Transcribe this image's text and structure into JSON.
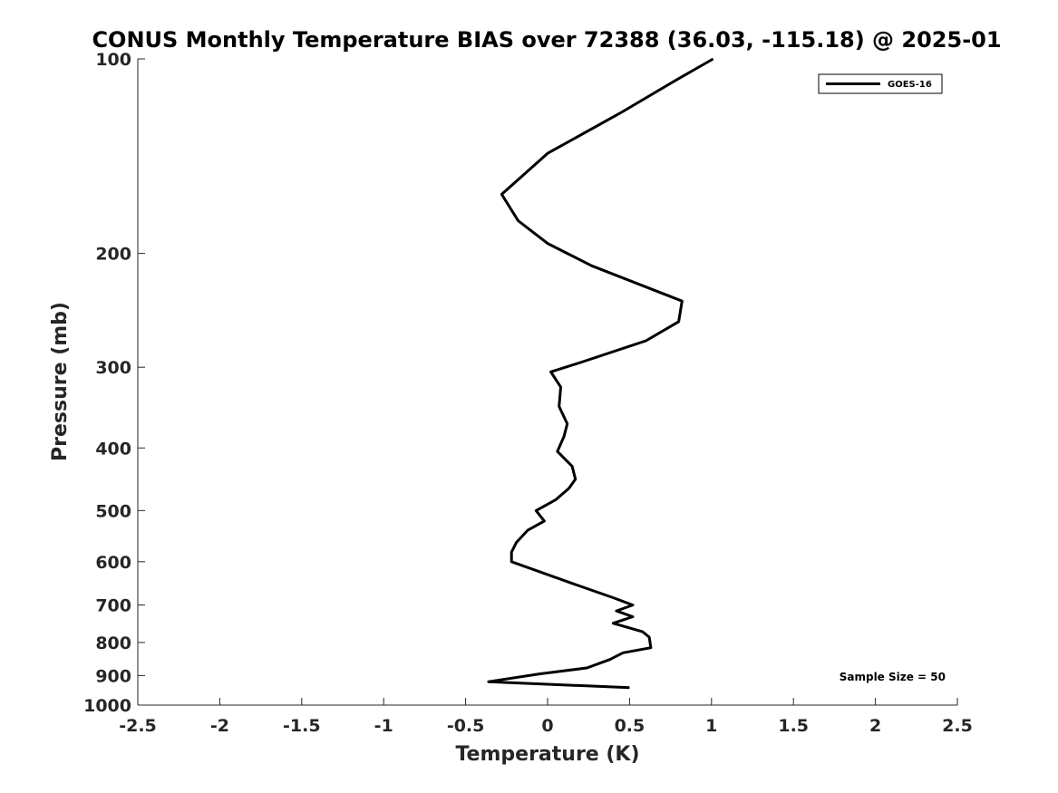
{
  "chart_data": {
    "type": "line",
    "title": "CONUS Monthly Temperature BIAS over 72388 (36.03, -115.18) @ 2025-01",
    "xlabel": "Temperature (K)",
    "ylabel": "Pressure (mb)",
    "xlim": [
      -2.5,
      2.5
    ],
    "ylim": [
      1000,
      100
    ],
    "y_scale": "log",
    "y_reversed": true,
    "x_ticks": [
      "-2.5",
      "-2",
      "-1.5",
      "-1",
      "-0.5",
      "0",
      "0.5",
      "1",
      "1.5",
      "2",
      "2.5"
    ],
    "y_ticks": [
      "100",
      "200",
      "300",
      "400",
      "500",
      "600",
      "700",
      "800",
      "900",
      "1000"
    ],
    "grid": false,
    "legend_position": "top-right",
    "annotation": "Sample Size = 50",
    "series": [
      {
        "name": "GOES-16",
        "color": "#000000",
        "points": [
          {
            "x": 1.01,
            "y": 100
          },
          {
            "x": 0.78,
            "y": 108
          },
          {
            "x": 0.45,
            "y": 121
          },
          {
            "x": 0.0,
            "y": 140
          },
          {
            "x": -0.28,
            "y": 162
          },
          {
            "x": -0.18,
            "y": 178
          },
          {
            "x": 0.0,
            "y": 193
          },
          {
            "x": 0.27,
            "y": 209
          },
          {
            "x": 0.82,
            "y": 237
          },
          {
            "x": 0.8,
            "y": 255
          },
          {
            "x": 0.6,
            "y": 273
          },
          {
            "x": 0.2,
            "y": 295
          },
          {
            "x": 0.02,
            "y": 305
          },
          {
            "x": 0.08,
            "y": 322
          },
          {
            "x": 0.07,
            "y": 345
          },
          {
            "x": 0.12,
            "y": 367
          },
          {
            "x": 0.1,
            "y": 384
          },
          {
            "x": 0.06,
            "y": 405
          },
          {
            "x": 0.15,
            "y": 427
          },
          {
            "x": 0.17,
            "y": 447
          },
          {
            "x": 0.13,
            "y": 462
          },
          {
            "x": 0.05,
            "y": 481
          },
          {
            "x": -0.07,
            "y": 500
          },
          {
            "x": -0.02,
            "y": 519
          },
          {
            "x": -0.12,
            "y": 536
          },
          {
            "x": -0.19,
            "y": 560
          },
          {
            "x": -0.22,
            "y": 580
          },
          {
            "x": -0.22,
            "y": 600
          },
          {
            "x": 0.15,
            "y": 648
          },
          {
            "x": 0.4,
            "y": 682
          },
          {
            "x": 0.52,
            "y": 700
          },
          {
            "x": 0.42,
            "y": 715
          },
          {
            "x": 0.52,
            "y": 730
          },
          {
            "x": 0.4,
            "y": 747
          },
          {
            "x": 0.58,
            "y": 770
          },
          {
            "x": 0.62,
            "y": 785
          },
          {
            "x": 0.63,
            "y": 815
          },
          {
            "x": 0.46,
            "y": 830
          },
          {
            "x": 0.38,
            "y": 850
          },
          {
            "x": 0.24,
            "y": 876
          },
          {
            "x": -0.05,
            "y": 895
          },
          {
            "x": -0.36,
            "y": 920
          },
          {
            "x": 0.5,
            "y": 940
          }
        ]
      }
    ]
  }
}
